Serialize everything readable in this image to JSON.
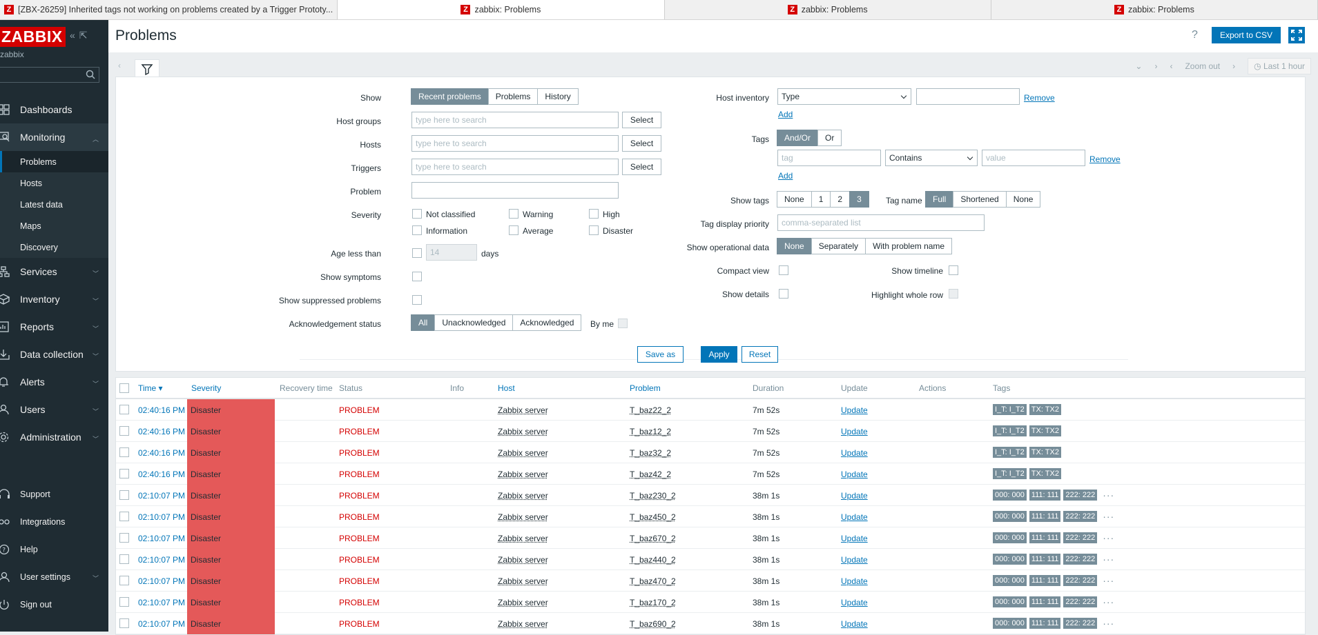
{
  "browser_tabs": [
    {
      "label": "[ZBX-26259] Inherited tags not working on problems created by a Trigger Prototy...",
      "active": false
    },
    {
      "label": "zabbix: Problems",
      "active": true
    },
    {
      "label": "zabbix: Problems",
      "active": false
    },
    {
      "label": "zabbix: Problems",
      "active": false
    }
  ],
  "sidebar": {
    "logo": "ZABBIX",
    "server_name": "zabbix",
    "menu": [
      {
        "label": "Dashboards"
      },
      {
        "label": "Monitoring"
      },
      {
        "label": "Services"
      },
      {
        "label": "Inventory"
      },
      {
        "label": "Reports"
      },
      {
        "label": "Data collection"
      },
      {
        "label": "Alerts"
      },
      {
        "label": "Users"
      },
      {
        "label": "Administration"
      }
    ],
    "monitoring_submenu": [
      "Problems",
      "Hosts",
      "Latest data",
      "Maps",
      "Discovery"
    ],
    "bottom": [
      "Support",
      "Integrations",
      "Help",
      "User settings",
      "Sign out"
    ]
  },
  "header": {
    "title": "Problems",
    "help": "?",
    "export_label": "Export to CSV"
  },
  "timebar": {
    "zoom_out": "Zoom out",
    "last": "Last 1 hour"
  },
  "filter": {
    "show_label": "Show",
    "show_options": [
      "Recent problems",
      "Problems",
      "History"
    ],
    "host_groups_label": "Host groups",
    "hosts_label": "Hosts",
    "triggers_label": "Triggers",
    "search_placeholder": "type here to search",
    "select_label": "Select",
    "problem_label": "Problem",
    "severity_label": "Severity",
    "severities": [
      "Not classified",
      "Information",
      "Warning",
      "Average",
      "High",
      "Disaster"
    ],
    "age_label": "Age less than",
    "age_value": "14",
    "age_unit": "days",
    "symptoms_label": "Show symptoms",
    "suppressed_label": "Show suppressed problems",
    "ack_label": "Acknowledgement status",
    "ack_options": [
      "All",
      "Unacknowledged",
      "Acknowledged"
    ],
    "by_me": "By me",
    "host_inventory_label": "Host inventory",
    "inventory_type": "Type",
    "remove": "Remove",
    "add": "Add",
    "tags_label": "Tags",
    "tags_mode": [
      "And/Or",
      "Or"
    ],
    "tag_placeholder": "tag",
    "tag_operator": "Contains",
    "value_placeholder": "value",
    "show_tags_label": "Show tags",
    "show_tags_options": [
      "None",
      "1",
      "2",
      "3"
    ],
    "tag_name_label": "Tag name",
    "tag_name_options": [
      "Full",
      "Shortened",
      "None"
    ],
    "tag_priority_label": "Tag display priority",
    "tag_priority_placeholder": "comma-separated list",
    "op_data_label": "Show operational data",
    "op_data_options": [
      "None",
      "Separately",
      "With problem name"
    ],
    "compact_label": "Compact view",
    "timeline_label": "Show timeline",
    "details_label": "Show details",
    "highlight_label": "Highlight whole row",
    "save_as": "Save as",
    "apply": "Apply",
    "reset": "Reset"
  },
  "table": {
    "columns": [
      "Time ▾",
      "Severity",
      "Recovery time",
      "Status",
      "Info",
      "Host",
      "Problem",
      "Duration",
      "Update",
      "Actions",
      "Tags"
    ],
    "rows": [
      {
        "time": "02:40:16 PM",
        "severity": "Disaster",
        "status": "PROBLEM",
        "host": "Zabbix server",
        "problem": "T_baz22_2",
        "duration": "7m 52s",
        "update": "Update",
        "tags": [
          "I_T: I_T2",
          "TX: TX2"
        ],
        "more": ""
      },
      {
        "time": "02:40:16 PM",
        "severity": "Disaster",
        "status": "PROBLEM",
        "host": "Zabbix server",
        "problem": "T_baz12_2",
        "duration": "7m 52s",
        "update": "Update",
        "tags": [
          "I_T: I_T2",
          "TX: TX2"
        ],
        "more": ""
      },
      {
        "time": "02:40:16 PM",
        "severity": "Disaster",
        "status": "PROBLEM",
        "host": "Zabbix server",
        "problem": "T_baz32_2",
        "duration": "7m 52s",
        "update": "Update",
        "tags": [
          "I_T: I_T2",
          "TX: TX2"
        ],
        "more": ""
      },
      {
        "time": "02:40:16 PM",
        "severity": "Disaster",
        "status": "PROBLEM",
        "host": "Zabbix server",
        "problem": "T_baz42_2",
        "duration": "7m 52s",
        "update": "Update",
        "tags": [
          "I_T: I_T2",
          "TX: TX2"
        ],
        "more": ""
      },
      {
        "time": "02:10:07 PM",
        "severity": "Disaster",
        "status": "PROBLEM",
        "host": "Zabbix server",
        "problem": "T_baz230_2",
        "duration": "38m 1s",
        "update": "Update",
        "tags": [
          "000: 000",
          "111: 111",
          "222: 222"
        ],
        "more": "···"
      },
      {
        "time": "02:10:07 PM",
        "severity": "Disaster",
        "status": "PROBLEM",
        "host": "Zabbix server",
        "problem": "T_baz450_2",
        "duration": "38m 1s",
        "update": "Update",
        "tags": [
          "000: 000",
          "111: 111",
          "222: 222"
        ],
        "more": "···"
      },
      {
        "time": "02:10:07 PM",
        "severity": "Disaster",
        "status": "PROBLEM",
        "host": "Zabbix server",
        "problem": "T_baz670_2",
        "duration": "38m 1s",
        "update": "Update",
        "tags": [
          "000: 000",
          "111: 111",
          "222: 222"
        ],
        "more": "···"
      },
      {
        "time": "02:10:07 PM",
        "severity": "Disaster",
        "status": "PROBLEM",
        "host": "Zabbix server",
        "problem": "T_baz440_2",
        "duration": "38m 1s",
        "update": "Update",
        "tags": [
          "000: 000",
          "111: 111",
          "222: 222"
        ],
        "more": "···"
      },
      {
        "time": "02:10:07 PM",
        "severity": "Disaster",
        "status": "PROBLEM",
        "host": "Zabbix server",
        "problem": "T_baz470_2",
        "duration": "38m 1s",
        "update": "Update",
        "tags": [
          "000: 000",
          "111: 111",
          "222: 222"
        ],
        "more": "···"
      },
      {
        "time": "02:10:07 PM",
        "severity": "Disaster",
        "status": "PROBLEM",
        "host": "Zabbix server",
        "problem": "T_baz170_2",
        "duration": "38m 1s",
        "update": "Update",
        "tags": [
          "000: 000",
          "111: 111",
          "222: 222"
        ],
        "more": "···"
      },
      {
        "time": "02:10:07 PM",
        "severity": "Disaster",
        "status": "PROBLEM",
        "host": "Zabbix server",
        "problem": "T_baz690_2",
        "duration": "38m 1s",
        "update": "Update",
        "tags": [
          "000: 000",
          "111: 111",
          "222: 222"
        ],
        "more": "···"
      }
    ]
  },
  "colors": {
    "accent": "#0275b8",
    "sidebar": "#1f2c33",
    "disaster": "#e45959",
    "problem_text": "#d40000",
    "tag_bg": "#768d99"
  }
}
